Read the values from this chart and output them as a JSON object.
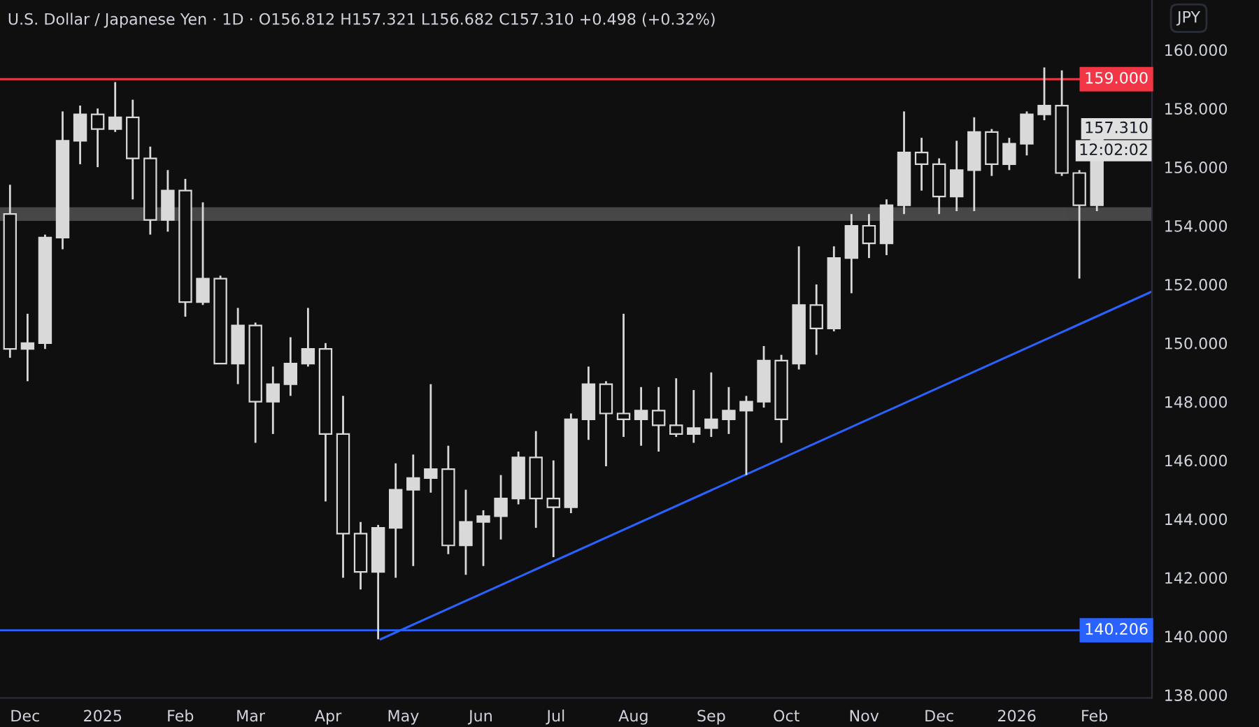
{
  "chart_data": {
    "type": "candlestick",
    "title": "U.S. Dollar / Japanese Yen · 1D · O156.812 H157.321 L156.682 C157.310 +0.498 (+0.32%)",
    "x": [
      "2024-11-25",
      "2024-12-02",
      "2024-12-09",
      "2024-12-16",
      "2024-12-23",
      "2024-12-30",
      "2025-01-06",
      "2025-01-13",
      "2025-01-20",
      "2025-01-27",
      "2025-02-03",
      "2025-02-10",
      "2025-02-17",
      "2025-02-24",
      "2025-03-03",
      "2025-03-10",
      "2025-03-17",
      "2025-03-24",
      "2025-03-31",
      "2025-04-07",
      "2025-04-14",
      "2025-04-21",
      "2025-04-28",
      "2025-05-05",
      "2025-05-12",
      "2025-05-19",
      "2025-05-26",
      "2025-06-02",
      "2025-06-09",
      "2025-06-16",
      "2025-06-23",
      "2025-06-30",
      "2025-07-07",
      "2025-07-14",
      "2025-07-21",
      "2025-07-28",
      "2025-08-04",
      "2025-08-11",
      "2025-08-18",
      "2025-08-25",
      "2025-09-01",
      "2025-09-08",
      "2025-09-15",
      "2025-09-22",
      "2025-09-29",
      "2025-10-06",
      "2025-10-13",
      "2025-10-20",
      "2025-10-27",
      "2025-11-03",
      "2025-11-10",
      "2025-11-17",
      "2025-11-24",
      "2025-12-01",
      "2025-12-08",
      "2025-12-15",
      "2025-12-22",
      "2025-12-29",
      "2026-01-05",
      "2026-01-12",
      "2026-01-19",
      "2026-01-26",
      "2026-02-02"
    ],
    "ohlc": [
      [
        154.4,
        155.4,
        149.5,
        149.8
      ],
      [
        149.8,
        151.0,
        148.7,
        150.0
      ],
      [
        150.0,
        153.7,
        149.8,
        153.6
      ],
      [
        153.6,
        157.9,
        153.2,
        156.9
      ],
      [
        156.9,
        158.1,
        156.1,
        157.8
      ],
      [
        157.8,
        158.0,
        156.0,
        157.3
      ],
      [
        157.3,
        158.9,
        157.2,
        157.7
      ],
      [
        157.7,
        158.3,
        154.9,
        156.3
      ],
      [
        156.3,
        156.7,
        153.7,
        154.2
      ],
      [
        154.2,
        155.9,
        153.8,
        155.2
      ],
      [
        155.2,
        155.6,
        150.9,
        151.4
      ],
      [
        151.4,
        154.8,
        151.3,
        152.2
      ],
      [
        152.2,
        152.3,
        149.3,
        149.3
      ],
      [
        149.3,
        151.2,
        148.6,
        150.6
      ],
      [
        150.6,
        150.7,
        146.6,
        148.0
      ],
      [
        148.0,
        149.2,
        146.9,
        148.6
      ],
      [
        148.6,
        150.2,
        148.2,
        149.3
      ],
      [
        149.3,
        151.2,
        149.2,
        149.8
      ],
      [
        149.8,
        150.0,
        144.6,
        146.9
      ],
      [
        146.9,
        148.2,
        142.0,
        143.5
      ],
      [
        143.5,
        143.9,
        141.6,
        142.2
      ],
      [
        142.2,
        143.8,
        139.9,
        143.7
      ],
      [
        143.7,
        145.9,
        142.0,
        145.0
      ],
      [
        145.0,
        146.2,
        142.4,
        145.4
      ],
      [
        145.4,
        148.6,
        144.9,
        145.7
      ],
      [
        145.7,
        146.5,
        142.8,
        143.1
      ],
      [
        143.1,
        145.0,
        142.1,
        143.9
      ],
      [
        143.9,
        144.3,
        142.4,
        144.1
      ],
      [
        144.1,
        145.5,
        143.3,
        144.7
      ],
      [
        144.7,
        146.3,
        144.5,
        146.1
      ],
      [
        146.1,
        147.0,
        143.7,
        144.7
      ],
      [
        144.7,
        146.0,
        142.7,
        144.4
      ],
      [
        144.4,
        147.6,
        144.2,
        147.4
      ],
      [
        147.4,
        149.2,
        146.7,
        148.6
      ],
      [
        148.6,
        148.7,
        145.8,
        147.6
      ],
      [
        147.6,
        151.0,
        146.8,
        147.4
      ],
      [
        147.4,
        148.5,
        146.5,
        147.7
      ],
      [
        147.7,
        148.5,
        146.3,
        147.2
      ],
      [
        147.2,
        148.8,
        146.8,
        146.9
      ],
      [
        146.9,
        148.4,
        146.6,
        147.1
      ],
      [
        147.1,
        149.0,
        146.8,
        147.4
      ],
      [
        147.4,
        148.5,
        146.9,
        147.7
      ],
      [
        147.7,
        148.2,
        145.5,
        148.0
      ],
      [
        148.0,
        149.9,
        147.8,
        149.4
      ],
      [
        149.4,
        149.6,
        146.6,
        147.4
      ],
      [
        149.3,
        153.3,
        149.1,
        151.3
      ],
      [
        151.3,
        152.0,
        149.6,
        150.5
      ],
      [
        150.5,
        153.3,
        150.4,
        152.9
      ],
      [
        152.9,
        154.4,
        151.7,
        154.0
      ],
      [
        154.0,
        154.4,
        152.9,
        153.4
      ],
      [
        153.4,
        154.9,
        153.0,
        154.7
      ],
      [
        154.7,
        157.9,
        154.4,
        156.5
      ],
      [
        156.5,
        157.0,
        155.2,
        156.1
      ],
      [
        156.1,
        156.3,
        154.4,
        155.0
      ],
      [
        155.0,
        156.9,
        154.5,
        155.9
      ],
      [
        155.9,
        157.7,
        154.5,
        157.2
      ],
      [
        157.2,
        157.3,
        155.7,
        156.1
      ],
      [
        156.1,
        157.0,
        155.9,
        156.8
      ],
      [
        156.8,
        157.9,
        156.4,
        157.8
      ],
      [
        157.8,
        159.4,
        157.6,
        158.1
      ],
      [
        158.1,
        159.3,
        155.7,
        155.8
      ],
      [
        155.8,
        155.9,
        152.2,
        154.7
      ],
      [
        154.7,
        157.321,
        154.5,
        157.31
      ]
    ],
    "color": "#d9d9d9",
    "series": [
      {
        "type": "line",
        "color": "#2962ff",
        "x": [
          "2025-04-22",
          "2026-02-24"
        ],
        "values": [
          139.9,
          151.76
        ]
      }
    ],
    "ref_lines": [
      {
        "axis": "y",
        "value": 159.0,
        "label": "159.000",
        "color": "#f23645"
      },
      {
        "axis": "y",
        "value": 140.206,
        "label": "140.206",
        "color": "#2962ff"
      }
    ],
    "bands": [
      {
        "axis": "y",
        "from": 154.2,
        "to": 154.6,
        "color": "#b0b0b0"
      }
    ],
    "annotations": [
      "JPY",
      "157.310",
      "12:02:02"
    ],
    "xlim": [
      "2024-11-21",
      "2026-02-24"
    ],
    "xticks": [
      {
        "value": "2024-12-01",
        "label": "Dec"
      },
      {
        "value": "2025-01-01",
        "label": "2025"
      },
      {
        "value": "2025-02-01",
        "label": "Feb"
      },
      {
        "value": "2025-03-01",
        "label": "Mar"
      },
      {
        "value": "2025-04-01",
        "label": "Apr"
      },
      {
        "value": "2025-05-01",
        "label": "May"
      },
      {
        "value": "2025-06-01",
        "label": "Jun"
      },
      {
        "value": "2025-07-01",
        "label": "Jul"
      },
      {
        "value": "2025-08-01",
        "label": "Aug"
      },
      {
        "value": "2025-09-01",
        "label": "Sep"
      },
      {
        "value": "2025-10-01",
        "label": "Oct"
      },
      {
        "value": "2025-11-01",
        "label": "Nov"
      },
      {
        "value": "2025-12-01",
        "label": "Dec"
      },
      {
        "value": "2026-01-01",
        "label": "2026"
      },
      {
        "value": "2026-02-01",
        "label": "Feb"
      }
    ],
    "ylim": [
      137.9,
      161.7
    ],
    "yticks": [
      {
        "value": 138,
        "label": "138.000"
      },
      {
        "value": 140,
        "label": "140.000"
      },
      {
        "value": 142,
        "label": "142.000"
      },
      {
        "value": 144,
        "label": "144.000"
      },
      {
        "value": 146,
        "label": "146.000"
      },
      {
        "value": 148,
        "label": "148.000"
      },
      {
        "value": 150,
        "label": "150.000"
      },
      {
        "value": 152,
        "label": "152.000"
      },
      {
        "value": 154,
        "label": "154.000"
      },
      {
        "value": 156,
        "label": "156.000"
      },
      {
        "value": 158,
        "label": "158.000"
      },
      {
        "value": 160,
        "label": "160.000"
      }
    ],
    "grid": false,
    "legend": false
  }
}
